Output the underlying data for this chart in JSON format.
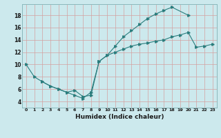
{
  "xlabel": "Humidex (Indice chaleur)",
  "bg_color": "#cce9ed",
  "grid_color": "#e8b8b8",
  "line_color": "#2a7d7d",
  "xlim": [
    -0.5,
    23.5
  ],
  "ylim": [
    3.0,
    19.8
  ],
  "xticks": [
    0,
    1,
    2,
    3,
    4,
    5,
    6,
    7,
    8,
    9,
    10,
    11,
    12,
    13,
    14,
    15,
    16,
    17,
    18,
    19,
    20,
    21,
    22,
    23
  ],
  "yticks": [
    4,
    6,
    8,
    10,
    12,
    14,
    16,
    18
  ],
  "line1_x": [
    0,
    1,
    2,
    3,
    4,
    5,
    6,
    7,
    8,
    9,
    10,
    11,
    12,
    13,
    14,
    15,
    16,
    17,
    18,
    19,
    20,
    21,
    22,
    23
  ],
  "line1_y": [
    10.0,
    8.0,
    7.2,
    6.5,
    6.0,
    5.5,
    5.0,
    4.5,
    5.5,
    10.5,
    11.5,
    12.0,
    12.5,
    13.0,
    13.3,
    13.5,
    13.8,
    14.0,
    14.5,
    14.8,
    15.2,
    12.8,
    13.0,
    13.3
  ],
  "line2_x": [
    9,
    10,
    11,
    12,
    13,
    14,
    15,
    16,
    17,
    18,
    20
  ],
  "line2_y": [
    10.5,
    11.5,
    13.0,
    14.5,
    15.5,
    16.5,
    17.5,
    18.2,
    18.8,
    19.3,
    18.0
  ],
  "line3_x": [
    2,
    3,
    4,
    5,
    6,
    7,
    8,
    9
  ],
  "line3_y": [
    7.2,
    6.5,
    6.0,
    5.5,
    5.8,
    4.8,
    5.0,
    10.5
  ]
}
